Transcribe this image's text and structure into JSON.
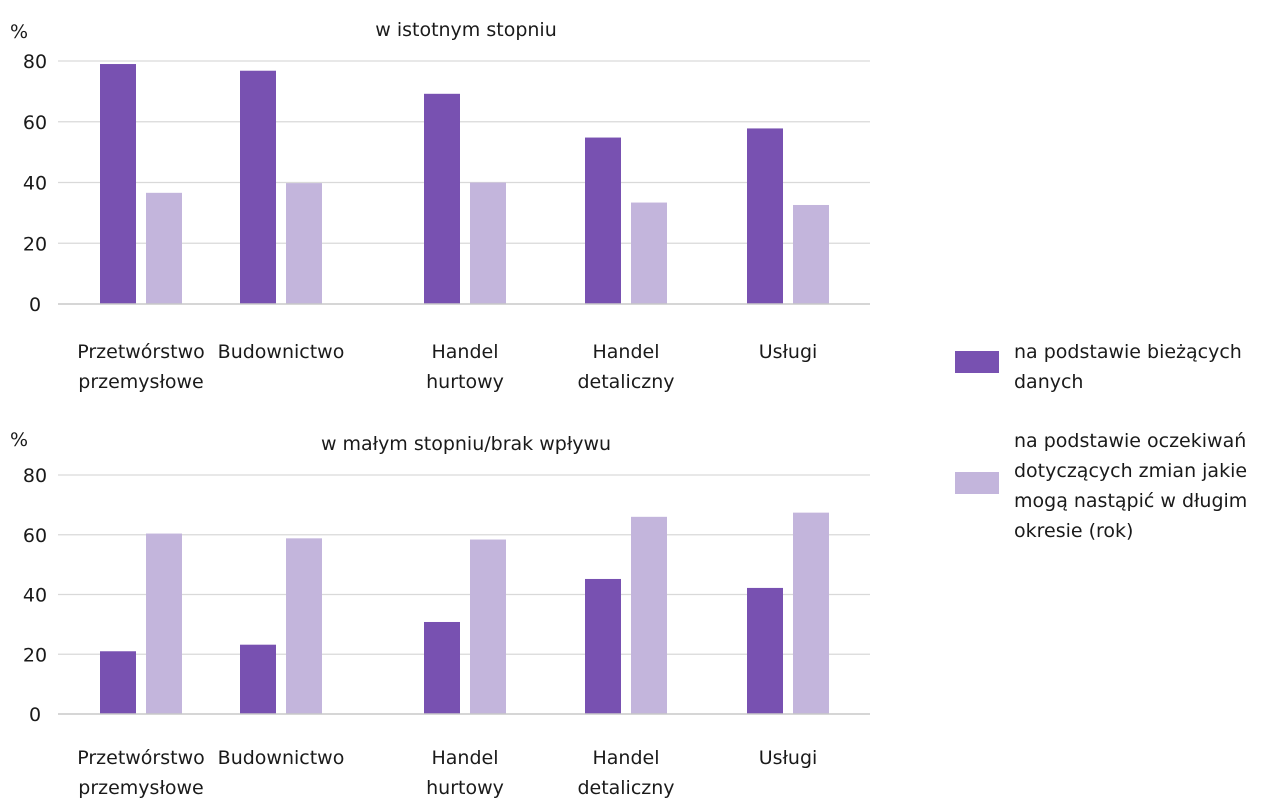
{
  "colors": {
    "series_current": "#7851b1",
    "series_expected": "#c3b5dc",
    "grid": "#d9d9d9",
    "axis": "#c8c8c8"
  },
  "legend": {
    "items": [
      {
        "label": "na podstawie bieżących danych",
        "color": "#7851b1"
      },
      {
        "label": "na podstawie oczekiwań dotyczących zmian jakie mogą nastąpić w długim okresie (rok)",
        "color": "#c3b5dc"
      }
    ]
  },
  "chart_data": [
    {
      "type": "bar",
      "title": "w istotnym stopniu",
      "ylabel": "%",
      "ylim": [
        0,
        80
      ],
      "yticks": [
        0,
        20,
        40,
        60,
        80
      ],
      "grid": true,
      "categories": [
        [
          "Przetwórstwo",
          "przemysłowe"
        ],
        [
          "Budownictwo"
        ],
        [
          "Handel",
          "hurtowy"
        ],
        [
          "Handel",
          "detaliczny"
        ],
        [
          "Usługi"
        ]
      ],
      "series": [
        {
          "name": "na podstawie bieżących danych",
          "values": [
            79,
            76.8,
            69.2,
            54.8,
            57.8
          ]
        },
        {
          "name": "na podstawie oczekiwań dotyczących zmian jakie mogą nastąpić w długim okresie (rok)",
          "values": [
            36.6,
            39.8,
            40,
            33.4,
            32.6
          ]
        }
      ]
    },
    {
      "type": "bar",
      "title": "w małym stopniu/brak wpływu",
      "ylabel": "%",
      "ylim": [
        0,
        80
      ],
      "yticks": [
        0,
        20,
        40,
        60,
        80
      ],
      "grid": true,
      "categories": [
        [
          "Przetwórstwo",
          "przemysłowe"
        ],
        [
          "Budownictwo"
        ],
        [
          "Handel",
          "hurtowy"
        ],
        [
          "Handel",
          "detaliczny"
        ],
        [
          "Usługi"
        ]
      ],
      "series": [
        {
          "name": "na podstawie bieżących danych",
          "values": [
            21,
            23.2,
            30.8,
            45.2,
            42.2
          ]
        },
        {
          "name": "na podstawie oczekiwań dotyczących zmian jakie mogą nastąpić w długim okresie (rok)",
          "values": [
            60.4,
            58.8,
            58.4,
            66,
            67.4
          ]
        }
      ]
    }
  ]
}
